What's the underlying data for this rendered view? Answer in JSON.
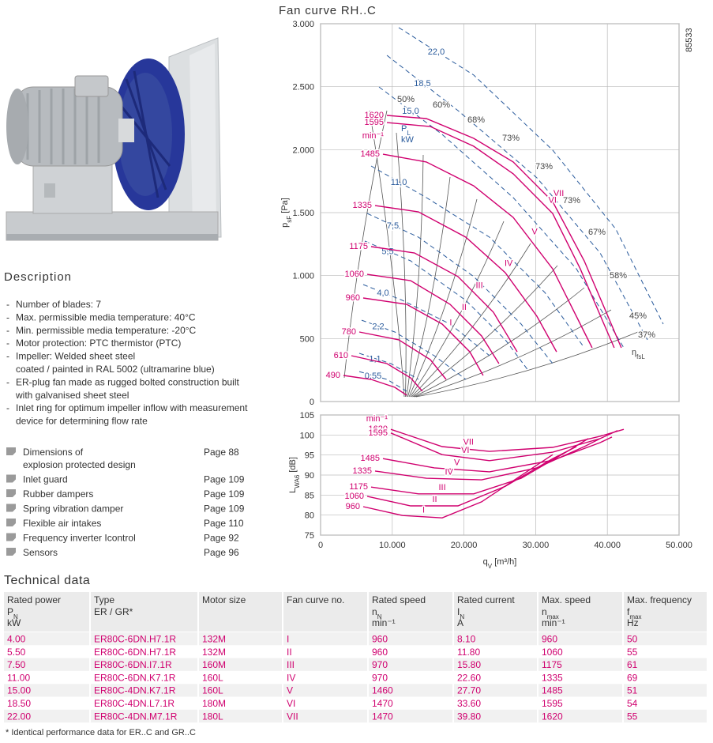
{
  "description": {
    "title": "Description",
    "items": [
      [
        "Number of blades: 7"
      ],
      [
        "Max. permissible media temperature: 40°C"
      ],
      [
        "Min. permissible media temperature: -20°C"
      ],
      [
        "Motor protection: PTC thermistor (PTC)"
      ],
      [
        "Impeller: Welded sheet steel",
        "coated / painted in RAL 5002 (ultramarine blue)"
      ],
      [
        "ER-plug fan made as rugged bolted construction built",
        "with galvanised sheet steel"
      ],
      [
        "Inlet ring for optimum impeller inflow with measurement",
        "device for determining flow rate"
      ]
    ]
  },
  "accessories": [
    {
      "text": [
        "Dimensions of",
        "explosion protected design"
      ],
      "page": "Page 88"
    },
    {
      "text": [
        "Inlet guard"
      ],
      "page": "Page 109"
    },
    {
      "text": [
        "Rubber dampers"
      ],
      "page": "Page 109"
    },
    {
      "text": [
        "Spring vibration damper"
      ],
      "page": "Page 109"
    },
    {
      "text": [
        "Flexible air intakes"
      ],
      "page": "Page 110"
    },
    {
      "text": [
        "Frequency inverter Icontrol"
      ],
      "page": "Page 92"
    },
    {
      "text": [
        "Sensors"
      ],
      "page": "Page 96"
    }
  ],
  "technical_data": {
    "title": "Technical data",
    "columns": [
      {
        "name": "Rated power",
        "symbol": "P",
        "sub": "N",
        "unit": "kW"
      },
      {
        "name": "Type",
        "symbol": "ER / GR*"
      },
      {
        "name": "Motor size"
      },
      {
        "name": "Fan curve no."
      },
      {
        "name": "Rated speed",
        "symbol": "n",
        "sub": "N",
        "unit": "min⁻¹"
      },
      {
        "name": "Rated current",
        "symbol": "I",
        "sub": "N",
        "unit": "A"
      },
      {
        "name": "Max. speed",
        "symbol": "n",
        "sub": "max",
        "unit": "min⁻¹"
      },
      {
        "name": "Max. frequency",
        "symbol": "f",
        "sub": "max",
        "unit": "Hz"
      }
    ],
    "rows": [
      [
        "4.00",
        "ER80C-6DN.H7.1R",
        "132M",
        "I",
        "960",
        "8.10",
        "960",
        "50"
      ],
      [
        "5.50",
        "ER80C-6DN.H7.1R",
        "132M",
        "II",
        "960",
        "11.80",
        "1060",
        "55"
      ],
      [
        "7.50",
        "ER80C-6DN.I7.1R",
        "160M",
        "III",
        "970",
        "15.80",
        "1175",
        "61"
      ],
      [
        "11.00",
        "ER80C-6DN.K7.1R",
        "160L",
        "IV",
        "970",
        "22.60",
        "1335",
        "69"
      ],
      [
        "15.00",
        "ER80C-4DN.K7.1R",
        "160L",
        "V",
        "1460",
        "27.70",
        "1485",
        "51"
      ],
      [
        "18.50",
        "ER80C-4DN.L7.1R",
        "180M",
        "VI",
        "1470",
        "33.60",
        "1595",
        "54"
      ],
      [
        "22.00",
        "ER80C-4DN.M7.1R",
        "180L",
        "VII",
        "1470",
        "39.80",
        "1620",
        "55"
      ]
    ],
    "footnote": "* Identical performance data for ER..C and GR..C"
  },
  "chart_data": [
    {
      "type": "line",
      "title": "Fan curve RH..C",
      "drawing_number": "85533",
      "ylabel": {
        "symbol": "p",
        "sub": "sF",
        "unit": " [Pa]"
      },
      "xlim": [
        0,
        50000
      ],
      "ylim": [
        0,
        3000
      ],
      "yticks": [
        0,
        500,
        {
          "value": 1000,
          "label": "1.000"
        },
        {
          "value": 1500,
          "label": "1.500"
        },
        {
          "value": 2000,
          "label": "2.000"
        },
        {
          "value": 2500,
          "label": "2.500"
        },
        {
          "value": 3000,
          "label": "3.000"
        }
      ],
      "grid": true,
      "speed_unit": "min⁻¹",
      "series": [
        {
          "name": "1620",
          "label": "VII",
          "color": "#d0006f",
          "x": [
            9250,
            14750,
            21360,
            26870,
            32370,
            36770,
            40080,
            41950
          ],
          "values": [
            2272,
            2247,
            2090,
            1902,
            1588,
            1117,
            678,
            427
          ]
        },
        {
          "name": "1595",
          "label": "VI",
          "color": "#d0006f",
          "x": [
            9250,
            15300,
            21360,
            26870,
            32370,
            36220,
            39530,
            40960
          ],
          "values": [
            2215,
            2184,
            2027,
            1808,
            1494,
            1054,
            615,
            427
          ]
        },
        {
          "name": "1485",
          "label": "V",
          "color": "#d0006f",
          "x": [
            8700,
            14750,
            21360,
            26870,
            32370,
            36220,
            37870
          ],
          "values": [
            1964,
            1902,
            1713,
            1462,
            1054,
            615,
            427
          ]
        },
        {
          "name": "1335",
          "label": "IV",
          "color": "#d0006f",
          "x": [
            7600,
            13650,
            20260,
            25760,
            30170,
            32920
          ],
          "values": [
            1556,
            1506,
            1305,
            1023,
            678,
            395
          ]
        },
        {
          "name": "1175",
          "label": "III",
          "color": "#d0006f",
          "x": [
            7050,
            13100,
            19160,
            24110,
            27420
          ],
          "values": [
            1230,
            1180,
            992,
            709,
            395
          ]
        },
        {
          "name": "1060",
          "label": "II",
          "color": "#d0006f",
          "x": [
            6500,
            12550,
            18060,
            22460,
            24880
          ],
          "values": [
            1010,
            960,
            772,
            521,
            301
          ]
        },
        {
          "name": "960",
          "label": "I",
          "color": "#d0006f",
          "x": [
            5950,
            12000,
            16960,
            20810,
            22680
          ],
          "values": [
            822,
            772,
            615,
            395,
            207
          ]
        },
        {
          "name": "780",
          "color": "#d0006f",
          "x": [
            5400,
            10900,
            15300,
            17510
          ],
          "values": [
            552,
            490,
            333,
            176
          ]
        },
        {
          "name": "610",
          "color": "#d0006f",
          "x": [
            4290,
            9250,
            12550,
            14200
          ],
          "values": [
            364,
            301,
            188,
            82
          ]
        },
        {
          "name": "490",
          "color": "#d0006f",
          "x": [
            3190,
            7050,
            10350,
            12000
          ],
          "values": [
            207,
            176,
            113,
            50
          ]
        }
      ],
      "power_label": {
        "symbol": "P",
        "sub": "L",
        "unit": "kW"
      },
      "power_curves": {
        "color": "#2a5b9c",
        "series": [
          {
            "name": "22,0",
            "x": [
              10900,
              21370,
              32380,
              41190,
              47800
            ],
            "values": [
              2969,
              2592,
              1996,
              1368,
              615
            ]
          },
          {
            "name": "18,5",
            "x": [
              9250,
              19160,
              30180,
              38990,
              45590
            ],
            "values": [
              2749,
              2310,
              1776,
              1180,
              490
            ]
          },
          {
            "name": "15,0",
            "x": [
              8150,
              16960,
              26870,
              35680,
              42290
            ],
            "values": [
              2498,
              2121,
              1619,
              1054,
              427
            ]
          },
          {
            "name": "11,0",
            "x": [
              7050,
              14760,
              23570,
              31280,
              36780
            ],
            "values": [
              1870,
              1619,
              1305,
              866,
              427
            ]
          },
          {
            "name": "7,5",
            "x": [
              6500,
              13660,
              21370,
              27970,
              32380
            ],
            "values": [
              1494,
              1305,
              992,
              615,
              301
            ]
          },
          {
            "name": "5,5",
            "x": [
              6170,
              12550,
              20260,
              25770,
              29070
            ],
            "values": [
              1274,
              1117,
              803,
              490,
              238
            ]
          },
          {
            "name": "4,0",
            "x": [
              5950,
              11450,
              18060,
              23570
            ],
            "values": [
              929,
              803,
              615,
              364
            ]
          },
          {
            "name": "2,2",
            "x": [
              5730,
              10350,
              15860,
              20260
            ],
            "values": [
              646,
              552,
              364,
              176
            ]
          },
          {
            "name": "1,1",
            "x": [
              5400,
              9800,
              13660
            ],
            "values": [
              383,
              301,
              176
            ]
          },
          {
            "name": "0,55",
            "x": [
              5400,
              9250,
              12000
            ],
            "values": [
              238,
              176,
              82
            ]
          }
        ]
      },
      "efficiency_labels": [
        {
          "text": "50%",
          "x": 10680,
          "y": 2379
        },
        {
          "text": "60%",
          "x": 15640,
          "y": 2335
        },
        {
          "text": "68%",
          "x": 20480,
          "y": 2215
        },
        {
          "text": "73%",
          "x": 25330,
          "y": 2071
        },
        {
          "text": "73%",
          "x": 29960,
          "y": 1845
        },
        {
          "text": "73%",
          "x": 33810,
          "y": 1575
        },
        {
          "text": "67%",
          "x": 37330,
          "y": 1324
        },
        {
          "text": "58%",
          "x": 40310,
          "y": 979
        },
        {
          "text": "45%",
          "x": 43060,
          "y": 659
        },
        {
          "text": "37%",
          "x": 44270,
          "y": 508
        }
      ],
      "efficiency_symbol": {
        "symbol": "η",
        "sub": "fsL"
      }
    },
    {
      "type": "line",
      "ylabel": {
        "symbol": "L",
        "sub": "WA6",
        "unit": " [dB]"
      },
      "xlabel": {
        "symbol": "q",
        "sub": "V",
        "unit": " [m³/h]"
      },
      "xlim": [
        0,
        50000
      ],
      "ylim": [
        75,
        105
      ],
      "xticks": [
        0,
        {
          "value": 10000,
          "label": "10.000"
        },
        {
          "value": 20000,
          "label": "20.000"
        },
        {
          "value": 30000,
          "label": "30.000"
        },
        {
          "value": 40000,
          "label": "40.000"
        },
        {
          "value": 50000,
          "label": "50.000"
        }
      ],
      "yticks": [
        75,
        80,
        85,
        90,
        95,
        100,
        105
      ],
      "grid": true,
      "speed_unit": "min⁻¹",
      "series": [
        {
          "name": "1620",
          "label": "VII",
          "color": "#d0006f",
          "x": [
            9800,
            16960,
            23560,
            32370,
            38990,
            42290
          ],
          "values": [
            101.4,
            97.1,
            95.9,
            96.9,
            99.7,
            101.4
          ]
        },
        {
          "name": "1595",
          "label": "VI",
          "color": "#d0006f",
          "x": [
            9800,
            16960,
            23560,
            32370,
            38990,
            41410
          ],
          "values": [
            100.5,
            95.1,
            93.6,
            95.7,
            99.1,
            101.1
          ]
        },
        {
          "name": "1485",
          "label": "V",
          "color": "#d0006f",
          "x": [
            8700,
            15860,
            23560,
            32370,
            38990,
            40640
          ],
          "values": [
            94.1,
            91.8,
            90.8,
            93.7,
            98.1,
            99.5
          ]
        },
        {
          "name": "1335",
          "label": "IV",
          "color": "#d0006f",
          "x": [
            7600,
            14760,
            22460,
            30170,
            36780,
            38990
          ],
          "values": [
            91.0,
            89.2,
            88.8,
            91.8,
            97.1,
            99.1
          ]
        },
        {
          "name": "1175",
          "label": "III",
          "color": "#d0006f",
          "x": [
            7050,
            13660,
            21370,
            27970,
            34580,
            37330
          ],
          "values": [
            87.0,
            85.3,
            85.3,
            89.2,
            96.1,
            99.1
          ]
        },
        {
          "name": "1060",
          "label": "II",
          "color": "#d0006f",
          "x": [
            6500,
            12550,
            19160,
            25770,
            32380,
            35680
          ],
          "values": [
            84.7,
            82.3,
            82.3,
            87.2,
            94.1,
            97.1
          ]
        },
        {
          "name": "960",
          "label": "I",
          "color": "#d0006f",
          "x": [
            5950,
            11450,
            16960,
            22460,
            29070,
            32380
          ],
          "values": [
            82.1,
            79.9,
            79.3,
            83.3,
            91.2,
            95.1
          ]
        }
      ]
    }
  ]
}
